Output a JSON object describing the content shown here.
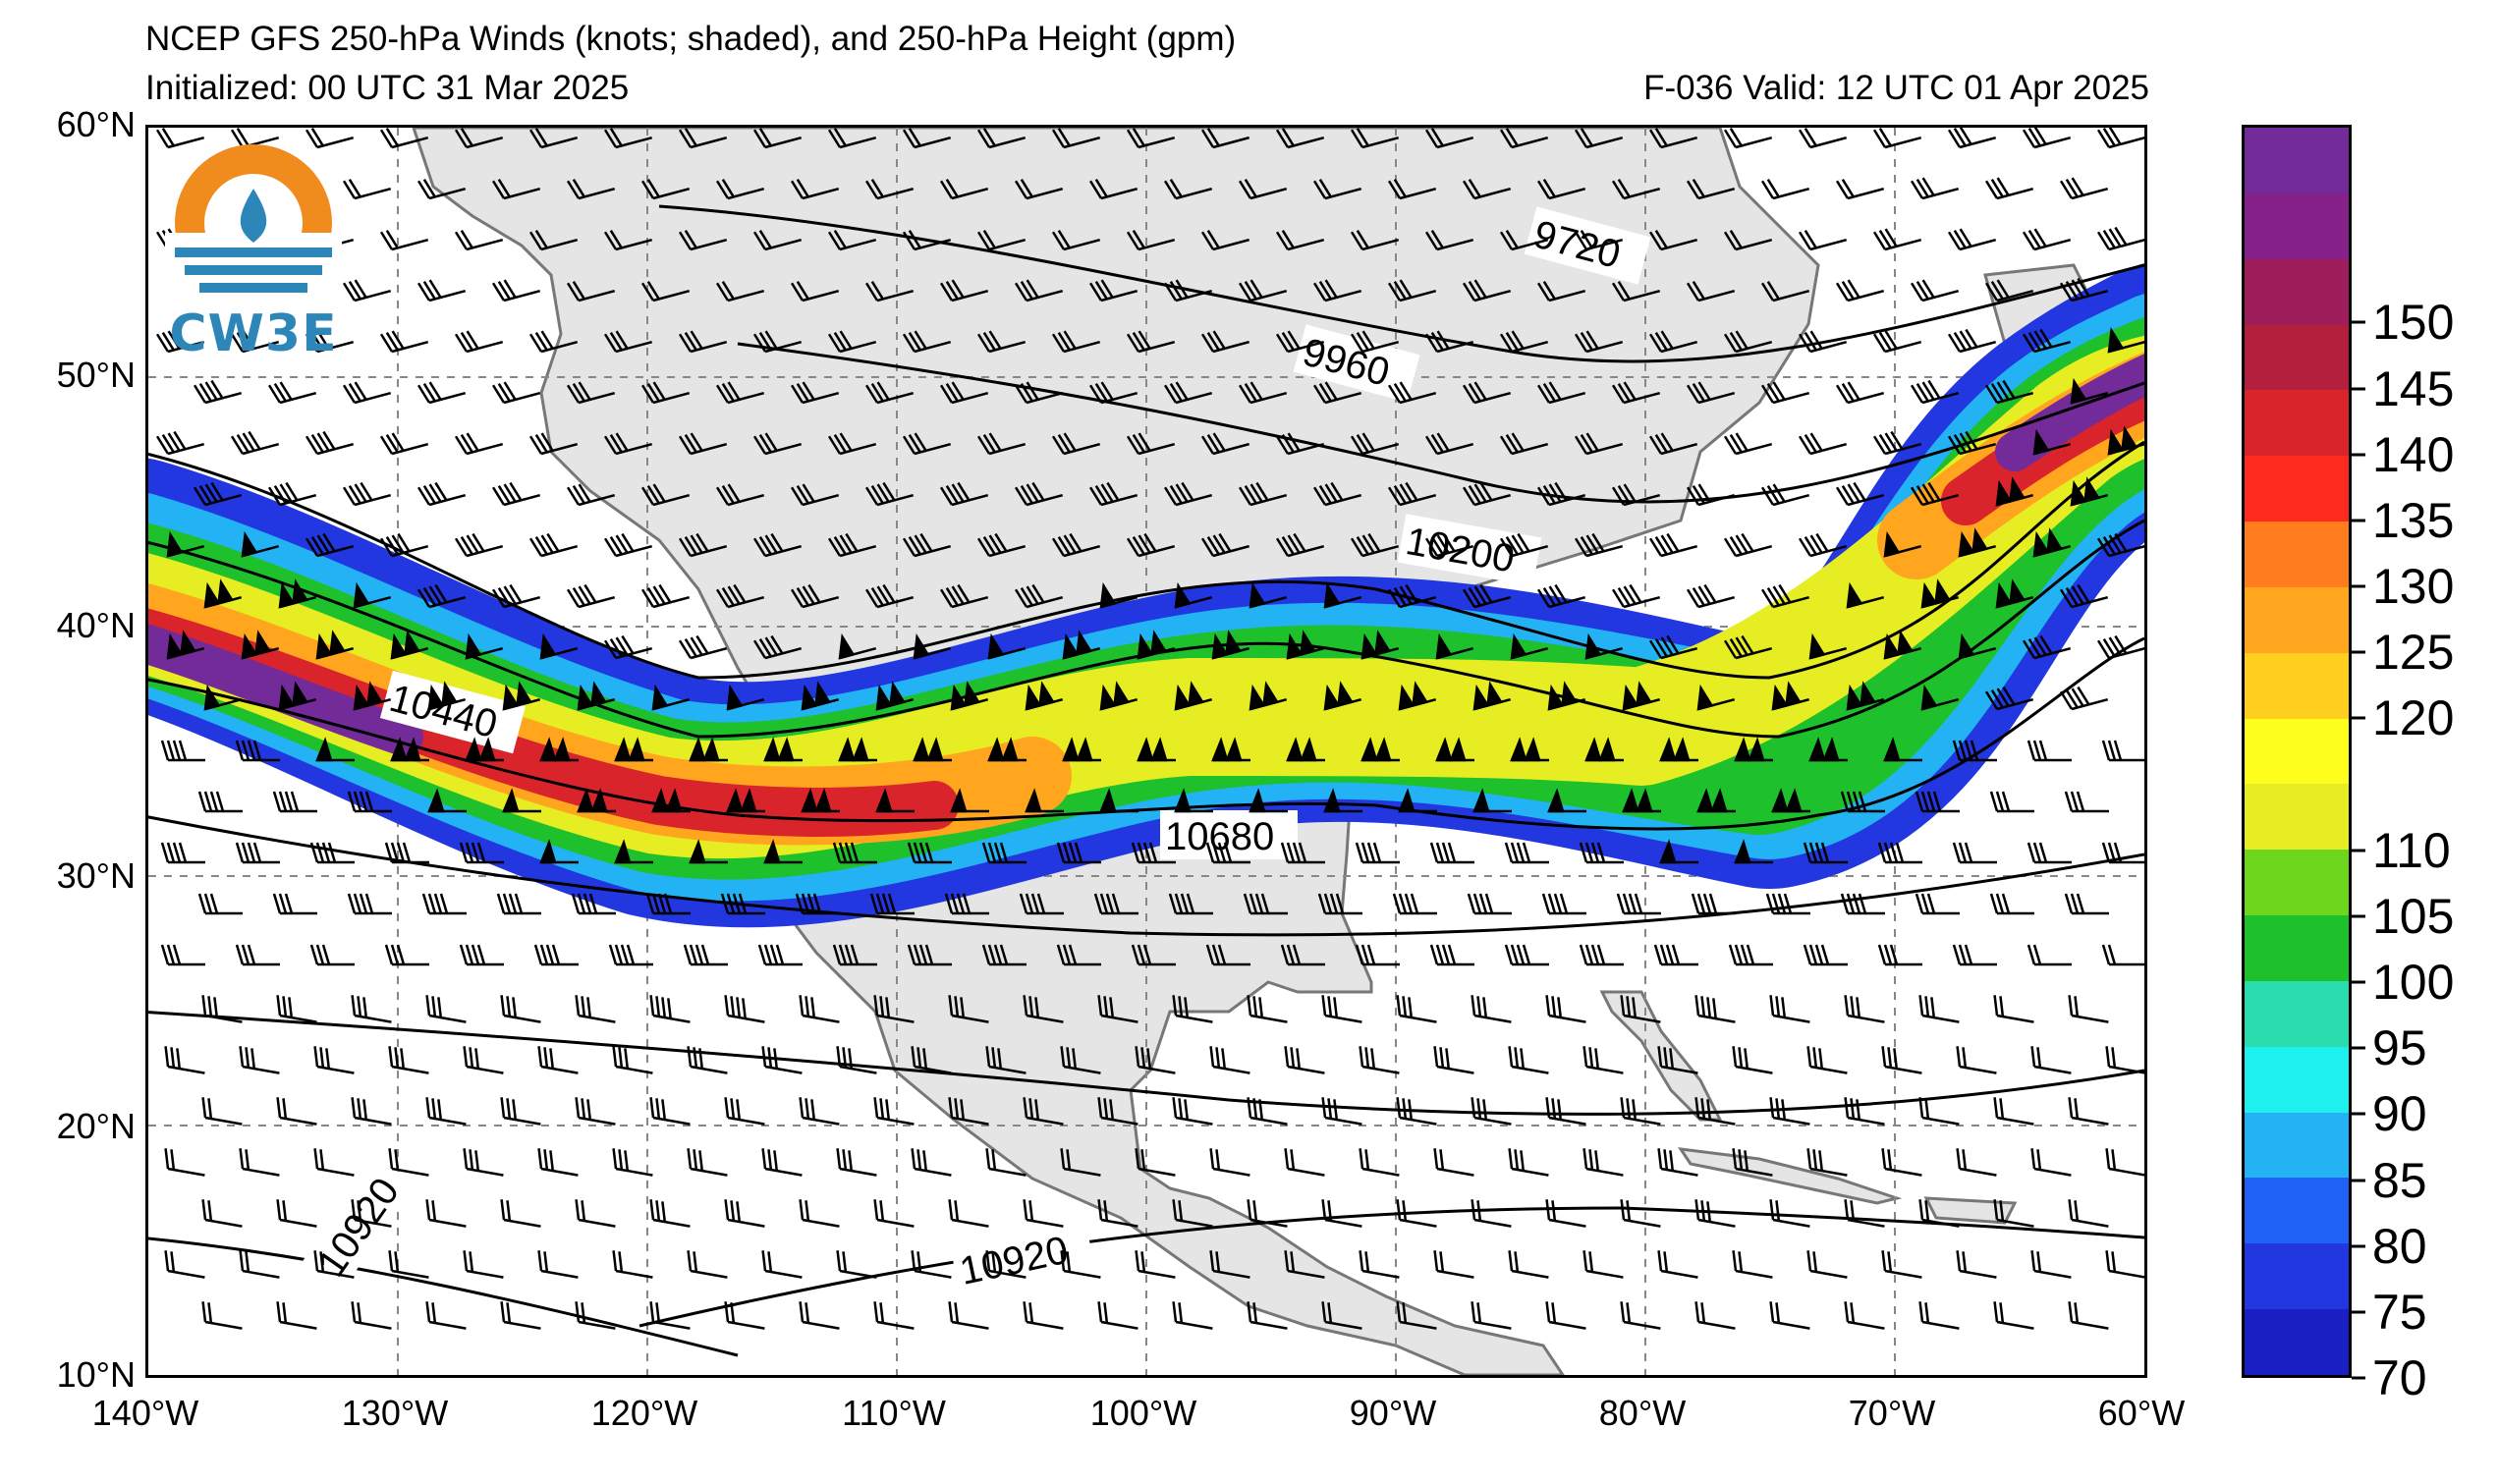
{
  "title": {
    "line1": "NCEP GFS 250-hPa Winds (knots; shaded), and 250-hPa Height (gpm)",
    "line2": "Initialized: 00 UTC 31 Mar 2025",
    "valid": "F-036  Valid: 12 UTC 01 Apr 2025"
  },
  "logo": {
    "text": "CW3E",
    "icon": "cw3e-water-drop-logo"
  },
  "map": {
    "lon_range": [
      -140,
      -60
    ],
    "lat_range": [
      10,
      60
    ],
    "grid": "dashed, every 10 degrees",
    "lat_labels": [
      "60°N",
      "50°N",
      "40°N",
      "30°N",
      "20°N",
      "10°N"
    ],
    "lon_labels": [
      "140°W",
      "130°W",
      "120°W",
      "110°W",
      "100°W",
      "90°W",
      "80°W",
      "70°W",
      "60°W"
    ],
    "contour_labels": [
      "9720",
      "9960",
      "10200",
      "10440",
      "10680",
      "10920",
      "10920"
    ]
  },
  "colorbar": {
    "tick_labels": [
      "70",
      "75",
      "80",
      "85",
      "90",
      "95",
      "100",
      "105",
      "110",
      "120",
      "125",
      "130",
      "135",
      "140",
      "145",
      "150"
    ],
    "colors": [
      "#1a1fc4",
      "#2237e0",
      "#1f62f5",
      "#23b3f4",
      "#1ef0ee",
      "#2bdcae",
      "#1ec02b",
      "#6fd61e",
      "#e6ed22",
      "#ffff1e",
      "#ffce1e",
      "#ffa51e",
      "#ff7d1e",
      "#ff2a1e",
      "#d8242a",
      "#b31f3c",
      "#9e1d5a",
      "#86208a",
      "#722b99"
    ]
  }
}
